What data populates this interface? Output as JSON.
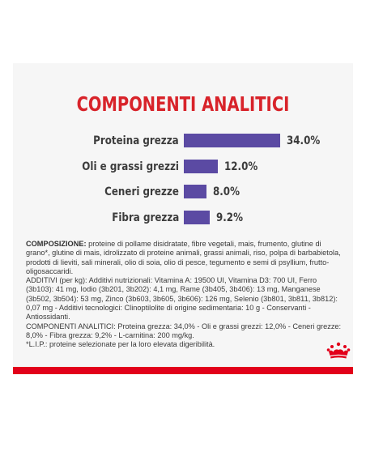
{
  "title": "COMPONENTI ANALITICI",
  "nutrients": [
    {
      "label": "Proteina grezza",
      "value": 34.0,
      "display": "34.0%"
    },
    {
      "label": "Oli e grassi grezzi",
      "value": 12.0,
      "display": "12.0%"
    },
    {
      "label": "Ceneri grezze",
      "value": 8.0,
      "display": "8.0%"
    },
    {
      "label": "Fibra grezza",
      "value": 9.2,
      "display": "9.2%"
    }
  ],
  "composition": {
    "heading": "COMPOSIZIONE:",
    "text": " proteine di pollame disidratate, fibre vegetali, mais, frumento, glutine di grano*, glutine di mais, idrolizzato di proteine animali, grassi animali, riso, polpa di barbabietola, prodotti di lieviti, sali minerali, olio di soia, olio di pesce, tegumento e semi di psyllium, frutto-oligosaccaridi."
  },
  "additives_text": "ADDITIVI (per kg): Additivi nutrizionali: Vitamina A: 19500 UI, Vitamina D3: 700 UI, Ferro (3b103): 41 mg, Iodio (3b201, 3b202): 4,1 mg, Rame (3b405, 3b406): 13 mg, Manganese (3b502, 3b504): 53 mg, Zinco (3b603, 3b605, 3b606): 126 mg, Selenio (3b801, 3b811, 3b812): 0,07 mg - Additivi tecnologici: Clinoptilolite di origine sedimentaria: 10 g - Conservanti - Antiossidanti.",
  "analytical_text": "COMPONENTI ANALITICI: Proteina grezza: 34,0% - Oli e grassi grezzi: 12,0% - Ceneri grezze: 8,0% - Fibra grezza: 9,2% - L-carnitina: 200 mg/kg.",
  "footnote_text": "*L.I.P.: proteine selezionate per la loro elevata digeribilità.",
  "colors": {
    "title": "#d8232a",
    "bar": "#5b4aa3",
    "accent": "#e2001a",
    "card": "#f6f6f6"
  },
  "icons": {
    "brand": "royal-crown-icon"
  }
}
